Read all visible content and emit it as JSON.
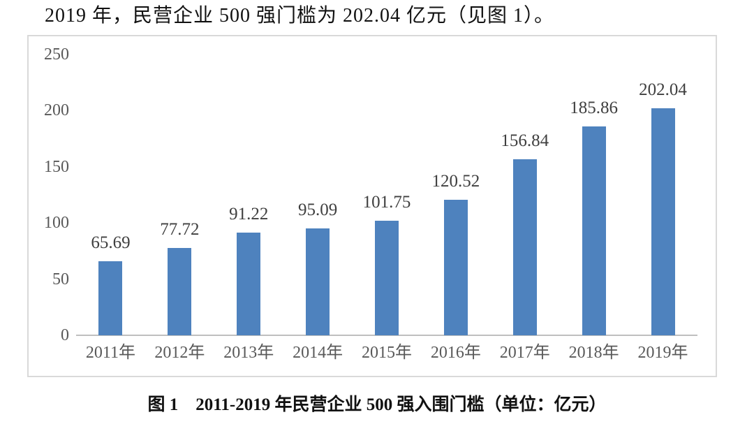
{
  "page": {
    "heading": "2019 年，民营企业 500 强门槛为 202.04 亿元（见图 1）。",
    "caption": "图 1　2011-2019 年民营企业 500 强入围门槛（单位：亿元）"
  },
  "colors": {
    "bar": "#4e82be",
    "axis_text": "#595959",
    "data_label": "#3f3f3f",
    "chart_border": "#d9d9d9",
    "axis_line": "#bfbfbf",
    "heading_text": "#111111"
  },
  "chart_data": {
    "type": "bar",
    "categories": [
      "2011年",
      "2012年",
      "2013年",
      "2014年",
      "2015年",
      "2016年",
      "2017年",
      "2018年",
      "2019年"
    ],
    "values": [
      65.69,
      77.72,
      91.22,
      95.09,
      101.75,
      120.52,
      156.84,
      185.86,
      202.04
    ],
    "data_labels": [
      "65.69",
      "77.72",
      "91.22",
      "95.09",
      "101.75",
      "120.52",
      "156.84",
      "185.86",
      "202.04"
    ],
    "title": "图 1　2011-2019 年民营企业 500 强入围门槛（单位：亿元）",
    "xlabel": "",
    "ylabel": "",
    "unit": "亿元",
    "ylim": [
      0,
      250
    ],
    "yticks": [
      0,
      50,
      100,
      150,
      200,
      250
    ],
    "grid": false,
    "legend": "none"
  }
}
